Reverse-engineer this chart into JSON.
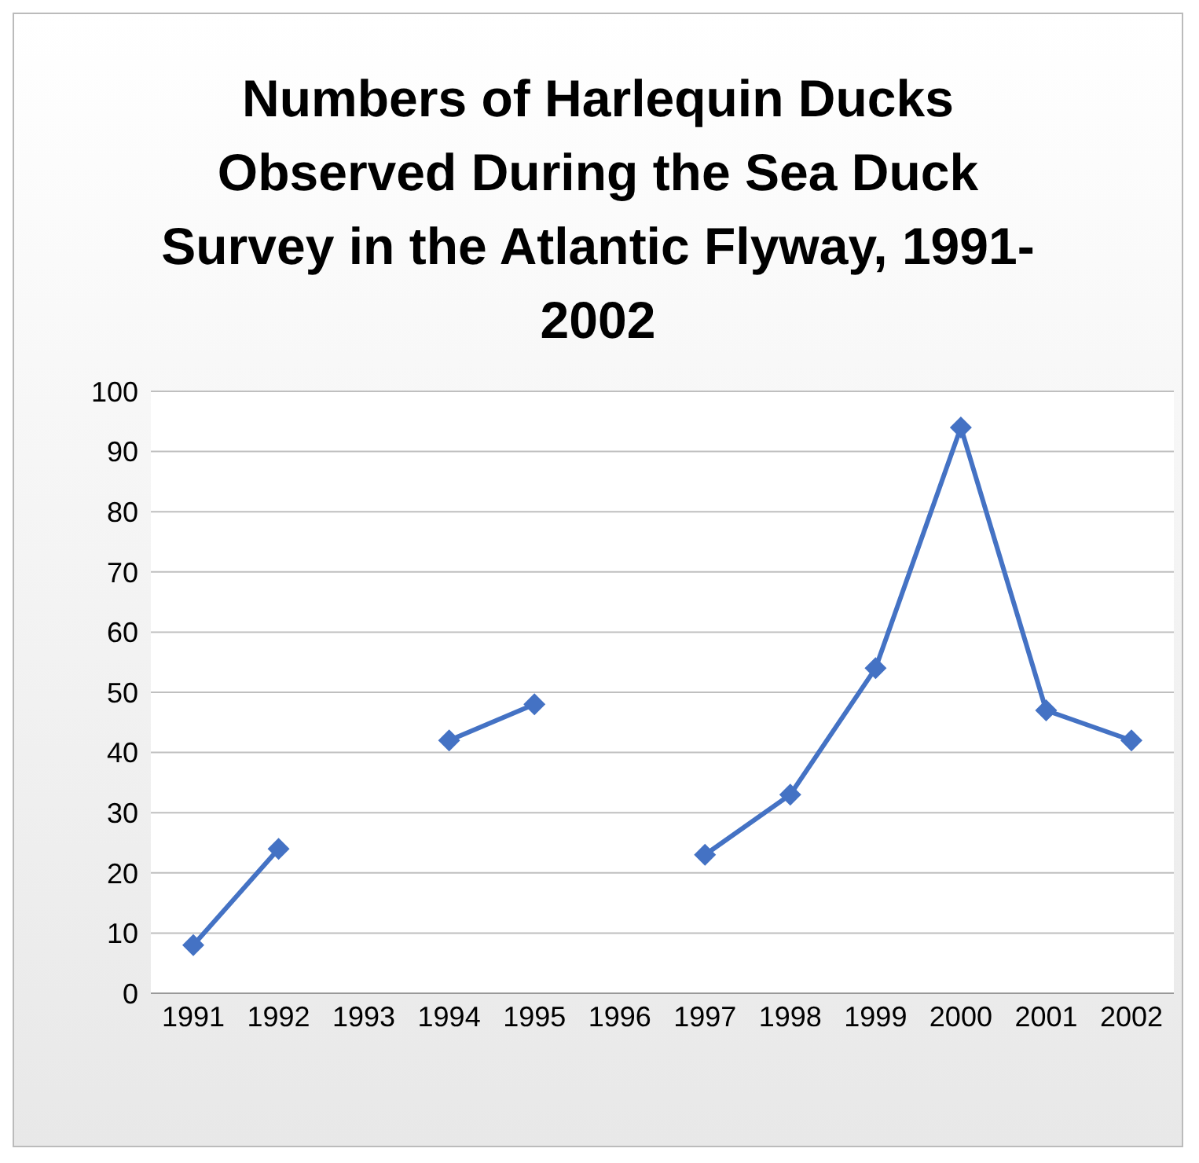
{
  "chart_data": {
    "type": "line",
    "title": "Numbers of Harlequin Ducks Observed During the Sea Duck Survey in the Atlantic Flyway, 1991-2002",
    "categories": [
      "1991",
      "1992",
      "1993",
      "1994",
      "1995",
      "1996",
      "1997",
      "1998",
      "1999",
      "2000",
      "2001",
      "2002"
    ],
    "series": [
      {
        "color": "#4472c4",
        "values": [
          8,
          24,
          null,
          42,
          48,
          null,
          23,
          33,
          54,
          94,
          47,
          42
        ]
      }
    ],
    "ylim": [
      0,
      100
    ],
    "yticks": [
      0,
      10,
      20,
      30,
      40,
      50,
      60,
      70,
      80,
      90,
      100
    ],
    "grid": "y",
    "marker": "diamond",
    "line_style": "solid"
  }
}
